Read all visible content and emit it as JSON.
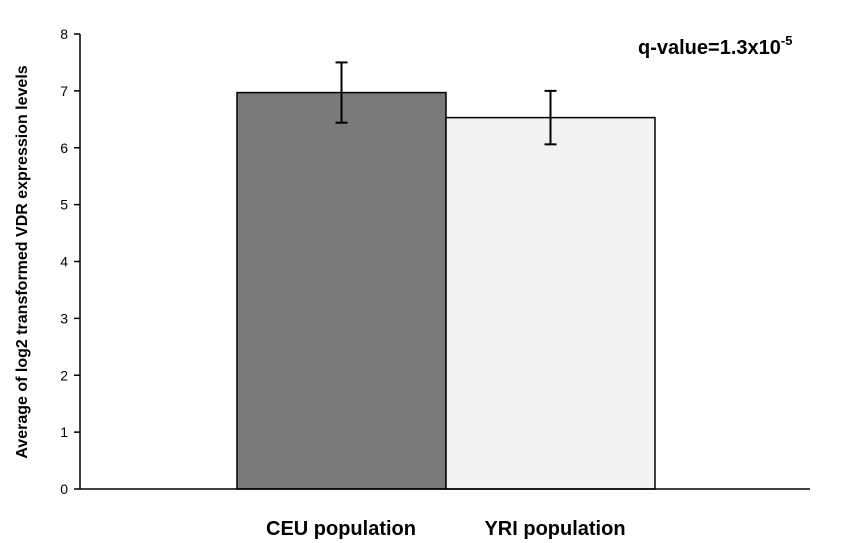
{
  "chart_data": {
    "type": "bar",
    "categories": [
      "CEU population",
      "YRI population"
    ],
    "values": [
      6.97,
      6.53
    ],
    "errors": [
      0.53,
      0.47
    ],
    "colors": [
      "#7a7a7a",
      "#f2f2f2"
    ],
    "ylabel": "Average of log2 transformed VDR expression levels",
    "ylim": [
      0,
      8
    ],
    "yticks": [
      0,
      1,
      2,
      3,
      4,
      5,
      6,
      7,
      8
    ],
    "grid": false,
    "annotation": {
      "base": "q-value=1.3x10",
      "exponent": "-5"
    }
  }
}
